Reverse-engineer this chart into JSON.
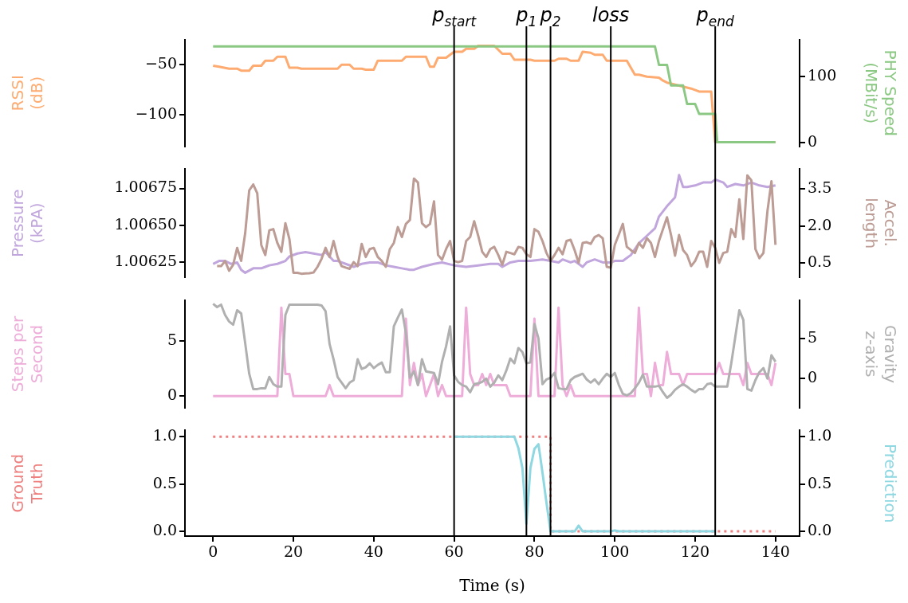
{
  "chart_data": [
    {
      "type": "line",
      "ylabel": "RSSI\n(dB)",
      "y2label": "PHY Speed\n(MBit/s)",
      "xlim": [
        -7,
        146
      ],
      "ylim": [
        -132,
        -25
      ],
      "yticks": [
        {
          "value": -50,
          "label": "−50"
        },
        {
          "value": -100,
          "label": "−100"
        }
      ],
      "y2lim": [
        -6,
        155
      ],
      "y2ticks": [
        0,
        100
      ],
      "tick_labels": "y",
      "ref_lines": [
        {
          "axis": "x",
          "value": 60,
          "label": "p$_{start}$"
        },
        {
          "axis": "x",
          "value": 78,
          "label": "p$_{1}$"
        },
        {
          "axis": "x",
          "value": 84,
          "label": "p$_{2}$"
        },
        {
          "axis": "x",
          "value": 99,
          "label": "loss"
        },
        {
          "axis": "x",
          "value": 125,
          "label": "p$_{end}$"
        }
      ],
      "series": [
        {
          "color": "#fdab70",
          "x": [
            0,
            1.5,
            4,
            6,
            7,
            9,
            10,
            12,
            13,
            15,
            16,
            18,
            19,
            21,
            22,
            31,
            32,
            34,
            35,
            37,
            38,
            40,
            41,
            47,
            48,
            53,
            54,
            55,
            56,
            58,
            60,
            62,
            63,
            65,
            66,
            70,
            72,
            74,
            75,
            79,
            80,
            85,
            86,
            88,
            89,
            91,
            92,
            94,
            95,
            97,
            98,
            103,
            105,
            106,
            108,
            111,
            112,
            113,
            117,
            119,
            121,
            124,
            125,
            140
          ],
          "values": [
            -51,
            -52,
            -54,
            -54,
            -56,
            -56,
            -51,
            -51,
            -46,
            -46,
            -42,
            -42,
            -53,
            -53,
            -54,
            -54,
            -50,
            -50,
            -54,
            -54,
            -55,
            -55,
            -46,
            -46,
            -42,
            -42,
            -52,
            -52,
            -43,
            -43,
            -37,
            -37,
            -34,
            -34,
            -31,
            -31,
            -39,
            -39,
            -45,
            -45,
            -46,
            -46,
            -44,
            -44,
            -46,
            -46,
            -37,
            -38,
            -40,
            -40,
            -46,
            -46,
            -60,
            -60,
            -62,
            -63,
            -66,
            -68,
            -72,
            -74,
            -77,
            -77,
            -128,
            -128
          ]
        },
        {
          "color": "#8bc883",
          "axis": "y2",
          "x": [
            0,
            110,
            111,
            113,
            114,
            117,
            118,
            120,
            121,
            125,
            125.5,
            140
          ],
          "values": [
            145,
            145,
            117,
            117,
            86,
            86,
            58,
            58,
            43,
            43,
            0,
            0
          ]
        }
      ]
    },
    {
      "type": "line",
      "ylabel": "Pressure\n(kPA)",
      "y2label": "Accel.\nlength",
      "xlim": [
        -7,
        146
      ],
      "ylim": [
        1.00615,
        1.00688
      ],
      "yticks": [
        1.00625,
        {
          "value": 1.0065,
          "label": "1.00650"
        },
        1.00675
      ],
      "y2lim": [
        -0.08,
        4.3
      ],
      "y2ticks": [
        0.5,
        {
          "value": 2,
          "label": "2.0"
        },
        3.5
      ],
      "tick_labels": "y",
      "ref_lines": [
        {
          "axis": "x",
          "value": 60
        },
        {
          "axis": "x",
          "value": 78
        },
        {
          "axis": "x",
          "value": 84
        },
        {
          "axis": "x",
          "value": 99
        },
        {
          "axis": "x",
          "value": 125
        }
      ],
      "series": [
        {
          "color": "#c0a6dd",
          "x": [
            0,
            1.5,
            3,
            4.5,
            6,
            7,
            8,
            10,
            12,
            13,
            14,
            16,
            18,
            19,
            21,
            23,
            25,
            27,
            28,
            30,
            31,
            33,
            35,
            37,
            39,
            41,
            43,
            45,
            47,
            49,
            50,
            52,
            55,
            57,
            60,
            63,
            66,
            69,
            71,
            72,
            74,
            76,
            79,
            82,
            84,
            86,
            87,
            89,
            90,
            92,
            93,
            95,
            97,
            99,
            100,
            102,
            104,
            106,
            108,
            110,
            111,
            113,
            115,
            116,
            117,
            118,
            120,
            122,
            124,
            125,
            127,
            128,
            130,
            132,
            134,
            136,
            138,
            140
          ],
          "values": [
            1.00624,
            1.00626,
            1.00626,
            1.00624,
            1.00625,
            1.0062,
            1.00618,
            1.00621,
            1.00621,
            1.00622,
            1.00623,
            1.00624,
            1.00626,
            1.00629,
            1.00631,
            1.00632,
            1.00631,
            1.0063,
            1.00632,
            1.00626,
            1.00626,
            1.00624,
            1.00622,
            1.00624,
            1.00625,
            1.00625,
            1.00623,
            1.00622,
            1.00621,
            1.0062,
            1.0062,
            1.00622,
            1.00624,
            1.00625,
            1.00623,
            1.00622,
            1.00623,
            1.00624,
            1.00624,
            1.00622,
            1.00625,
            1.00626,
            1.00626,
            1.00627,
            1.00626,
            1.00625,
            1.00627,
            1.00625,
            1.00626,
            1.00622,
            1.00625,
            1.00627,
            1.00625,
            1.00625,
            1.00626,
            1.00626,
            1.0063,
            1.00638,
            1.00643,
            1.00648,
            1.00656,
            1.00663,
            1.00669,
            1.00684,
            1.00676,
            1.00676,
            1.00677,
            1.00679,
            1.00679,
            1.00681,
            1.00679,
            1.00676,
            1.00678,
            1.00677,
            1.00679,
            1.00677,
            1.00676,
            1.00677
          ]
        },
        {
          "color": "#bc9c94",
          "axis": "y2",
          "x": [
            1,
            2,
            3,
            4,
            5,
            6,
            7,
            8,
            9,
            10,
            11,
            12,
            13,
            14,
            15,
            16,
            17,
            18,
            19,
            20,
            21,
            22,
            23,
            24,
            25,
            26,
            27,
            28,
            29,
            30,
            31,
            32,
            33,
            34,
            35,
            36,
            37,
            38,
            39,
            40,
            41,
            42,
            43,
            44,
            45,
            46,
            47,
            48,
            49,
            50,
            51,
            52,
            53,
            54,
            55,
            56,
            57,
            58,
            59,
            60,
            61,
            62,
            63,
            64,
            65,
            66,
            67,
            68,
            69,
            70,
            71,
            72,
            73,
            74,
            75,
            76,
            77,
            78,
            79,
            80,
            81,
            82,
            83,
            84,
            85,
            86,
            87,
            88,
            89,
            90,
            91,
            92,
            93,
            94,
            95,
            96,
            97,
            98,
            99,
            100,
            101,
            102,
            103,
            104,
            105,
            106,
            107,
            108,
            109,
            110,
            111,
            112,
            113,
            114,
            115,
            116,
            117,
            118,
            119,
            120,
            121,
            122,
            123,
            124,
            125,
            126,
            127,
            128,
            129,
            130,
            131,
            132,
            133,
            134,
            135,
            136,
            137,
            138,
            139,
            140
          ],
          "values": [
            0.37,
            0.37,
            0.58,
            0.18,
            0.42,
            1.11,
            0.58,
            1.71,
            3.44,
            3.68,
            3.32,
            1.23,
            0.82,
            1.82,
            1.87,
            1.31,
            0.95,
            2.11,
            1.47,
            0.1,
            0.1,
            0.06,
            0.07,
            0.08,
            0.11,
            0.34,
            0.66,
            1.11,
            0.74,
            1.39,
            0.74,
            0.37,
            0.31,
            0.26,
            0.53,
            0.37,
            1.27,
            0.74,
            1.06,
            1.11,
            0.74,
            0.58,
            0.34,
            1.06,
            1.31,
            1.95,
            1.55,
            2.08,
            2.24,
            3.92,
            3.76,
            2.11,
            1.95,
            2.08,
            3.0,
            0.82,
            0.63,
            1.06,
            1.39,
            0.58,
            0.53,
            0.58,
            1.39,
            1.55,
            2.19,
            1.6,
            0.95,
            0.74,
            1.06,
            1.15,
            0.82,
            0.42,
            0.95,
            0.9,
            0.85,
            1.15,
            1.11,
            0.85,
            0.74,
            1.87,
            1.76,
            1.39,
            0.9,
            0.58,
            0.82,
            1.11,
            0.85,
            1.39,
            1.44,
            1.02,
            0.5,
            1.31,
            1.34,
            1.27,
            1.55,
            1.63,
            1.5,
            0.34,
            0.31,
            1.23,
            1.65,
            2.08,
            1.15,
            1.02,
            0.9,
            1.31,
            1.11,
            1.5,
            1.31,
            0.74,
            1.39,
            1.87,
            2.35,
            1.63,
            0.79,
            1.63,
            1.02,
            0.82,
            0.37,
            0.58,
            0.95,
            0.95,
            0.34,
            1.39,
            1.11,
            0.5,
            0.9,
            0.95,
            1.87,
            1.55,
            3.08,
            1.47,
            4.05,
            3.85,
            1.06,
            0.69,
            0.9,
            2.6,
            3.81,
            1.23
          ]
        }
      ]
    },
    {
      "type": "line",
      "ylabel": "Steps per\nSecond",
      "y2label": "Gravity\nz-axis",
      "xlim": [
        -7,
        146
      ],
      "ylim": [
        -1.03,
        8.63
      ],
      "yticks": [
        0,
        5
      ],
      "y2lim": [
        -3.6,
        9.7
      ],
      "y2ticks": [
        0,
        5
      ],
      "tick_labels": "y",
      "ref_lines": [
        {
          "axis": "x",
          "value": 60
        },
        {
          "axis": "x",
          "value": 78
        },
        {
          "axis": "x",
          "value": 84
        },
        {
          "axis": "x",
          "value": 99
        },
        {
          "axis": "x",
          "value": 125
        }
      ],
      "x": [
        0,
        1,
        2,
        3,
        4,
        5,
        6,
        7,
        8,
        9,
        10,
        11,
        12,
        13,
        14,
        15,
        16,
        17,
        18,
        19,
        20,
        21,
        22,
        23,
        24,
        25,
        26,
        27,
        28,
        29,
        30,
        31,
        32,
        33,
        34,
        35,
        36,
        37,
        38,
        39,
        40,
        41,
        42,
        43,
        44,
        45,
        46,
        47,
        48,
        49,
        50,
        51,
        52,
        53,
        54,
        55,
        56,
        57,
        58,
        59,
        60,
        61,
        62,
        63,
        64,
        65,
        66,
        67,
        68,
        69,
        70,
        71,
        72,
        73,
        74,
        75,
        76,
        77,
        78,
        79,
        80,
        81,
        82,
        83,
        84,
        85,
        86,
        87,
        88,
        89,
        90,
        91,
        92,
        93,
        94,
        95,
        96,
        97,
        98,
        99,
        100,
        101,
        102,
        103,
        104,
        105,
        106,
        107,
        108,
        109,
        110,
        111,
        112,
        113,
        114,
        115,
        116,
        117,
        118,
        119,
        120,
        121,
        122,
        123,
        124,
        125,
        126,
        127,
        128,
        129,
        130,
        131,
        132,
        133,
        134,
        135,
        136,
        137,
        138,
        139,
        140
      ],
      "series": [
        {
          "color": "#eeacd9",
          "values": [
            0,
            0,
            0,
            0,
            0,
            0,
            0,
            0,
            0,
            0,
            0,
            0,
            0,
            0,
            0,
            0,
            0,
            8,
            2,
            2,
            0,
            0,
            0,
            0,
            0,
            0,
            0,
            0,
            0,
            1,
            0,
            0,
            0,
            0,
            0,
            0,
            0,
            0,
            0,
            0,
            0,
            0,
            0,
            0,
            0,
            0,
            0,
            0,
            7,
            1,
            3,
            1,
            2,
            0,
            1,
            2,
            0,
            1,
            0,
            0,
            0,
            0,
            0,
            8,
            2,
            1,
            1,
            2,
            1,
            2,
            1,
            1,
            1,
            1,
            0,
            0,
            0,
            0,
            0,
            0,
            7,
            0,
            0,
            0,
            0,
            0,
            8,
            1,
            0,
            1,
            0,
            0,
            0,
            0,
            0,
            0,
            0,
            0,
            0,
            0,
            0,
            0,
            0,
            0,
            0,
            0,
            8,
            2,
            2,
            0,
            3,
            1,
            1,
            4,
            2,
            2,
            2,
            1,
            2,
            2,
            2,
            2,
            2,
            2,
            2,
            2,
            3,
            2,
            2,
            2,
            2,
            2,
            1,
            3,
            2,
            2,
            2,
            2,
            2,
            1,
            3
          ]
        },
        {
          "color": "#b0b0b0",
          "axis": "y2",
          "values": [
            9.3,
            8.9,
            9.2,
            7.9,
            7.1,
            6.7,
            8.5,
            8.1,
            4.4,
            0.6,
            -1.3,
            -1.3,
            -1.2,
            -1.2,
            0.2,
            -0.7,
            -1.0,
            -1.0,
            7.9,
            9.2,
            9.2,
            9.2,
            9.2,
            9.2,
            9.2,
            9.2,
            9.2,
            9.1,
            8.4,
            4.3,
            2.4,
            0.2,
            -0.5,
            -1.2,
            -0.5,
            -0.2,
            2.4,
            1.2,
            1.4,
            1.9,
            1.3,
            1.7,
            2.0,
            0.8,
            0.8,
            6.5,
            7.6,
            8.6,
            5.7,
            0.1,
            0.9,
            -0.8,
            2.4,
            0.9,
            0.8,
            0.7,
            -0.7,
            2.1,
            4.0,
            6.5,
            0.4,
            -0.4,
            -0.8,
            -1.0,
            -1.7,
            -0.7,
            -0.6,
            -0.4,
            0,
            -1.0,
            -0.5,
            0.4,
            -0.2,
            1.0,
            2.5,
            1.9,
            3.8,
            3.3,
            1.9,
            2.0,
            6.8,
            5.0,
            -0.7,
            -0.1,
            0.1,
            0.7,
            -1.2,
            -1.3,
            -1.3,
            -0.2,
            0.2,
            0.4,
            0.6,
            -0.1,
            -0.5,
            -0.1,
            -0.7,
            0,
            0.6,
            0.2,
            0.7,
            -0.8,
            -1.9,
            -2.1,
            -1.8,
            -1.2,
            -0.5,
            0.5,
            -1.0,
            -1.0,
            -1.0,
            -0.9,
            -1.7,
            -2.4,
            -2.0,
            -1.4,
            -1.0,
            -0.7,
            -1.0,
            -1.4,
            -1.7,
            -1.3,
            -1.3,
            -0.7,
            -0.6,
            -1.0,
            -1.0,
            -1.0,
            -1.0,
            1.9,
            5.2,
            8.5,
            7.3,
            -1.3,
            -1.5,
            -0.2,
            0.8,
            1.3,
            0,
            2.9,
            2.1
          ]
        }
      ]
    },
    {
      "type": "line",
      "ylabel": "Ground\nTruth",
      "y2label": "Prediction",
      "xlabel": "Time (s)",
      "xlim": [
        -7,
        146
      ],
      "xticks": [
        0,
        20,
        40,
        60,
        80,
        100,
        120,
        140
      ],
      "ylim": [
        -0.05,
        1.065
      ],
      "yticks": [
        {
          "value": 0,
          "label": "0.0"
        },
        {
          "value": 0.5,
          "label": "0.5"
        },
        {
          "value": 1,
          "label": "1.0"
        }
      ],
      "y2lim": [
        -0.05,
        1.065
      ],
      "y2ticks": [
        {
          "value": 0,
          "label": "0.0"
        },
        {
          "value": 0.5,
          "label": "0.5"
        },
        {
          "value": 1,
          "label": "1.0"
        }
      ],
      "ref_lines": [
        {
          "axis": "x",
          "value": 60
        },
        {
          "axis": "x",
          "value": 78
        },
        {
          "axis": "x",
          "value": 84
        },
        {
          "axis": "x",
          "value": 99
        },
        {
          "axis": "x",
          "value": 125
        }
      ],
      "series": [
        {
          "color": "#ee8080",
          "line_style": "dotted",
          "x": [
            0,
            84,
            84,
            140
          ],
          "values": [
            1,
            1,
            0,
            0
          ]
        },
        {
          "color": "#8fd8e2",
          "axis": "y2",
          "x": [
            60,
            75,
            76,
            77,
            78,
            79,
            80,
            81,
            82,
            83,
            84,
            90,
            91,
            92,
            99,
            100,
            101,
            125
          ],
          "values": [
            1,
            1,
            0.88,
            0.67,
            0.08,
            0.67,
            0.87,
            0.92,
            0.62,
            0.3,
            0,
            0,
            0.06,
            0,
            0,
            0.01,
            0,
            0
          ]
        }
      ]
    }
  ]
}
